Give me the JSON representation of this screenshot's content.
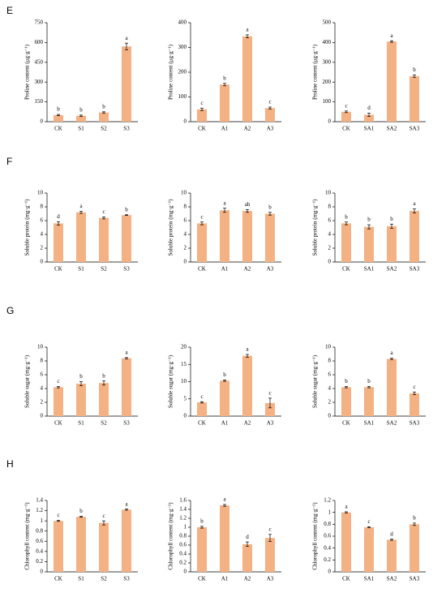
{
  "row_labels": [
    "E",
    "F",
    "G",
    "H"
  ],
  "chart_data": [
    {
      "type": "bar",
      "ylabel": "Proline content (μg·g⁻¹)",
      "categories": [
        "CK",
        "S1",
        "S2",
        "S3"
      ],
      "values": [
        50,
        45,
        70,
        570
      ],
      "errors": [
        5,
        5,
        5,
        25
      ],
      "significance": [
        "b",
        "b",
        "b",
        "a"
      ],
      "color": "#f4b183",
      "ylim": [
        0,
        750
      ],
      "yticks": [
        0,
        150,
        300,
        450,
        600,
        750
      ]
    },
    {
      "type": "bar",
      "ylabel": "Proline content (μg·g⁻¹)",
      "categories": [
        "CK",
        "A1",
        "A2",
        "A3"
      ],
      "values": [
        50,
        150,
        345,
        55
      ],
      "errors": [
        5,
        5,
        6,
        4
      ],
      "significance": [
        "c",
        "b",
        "a",
        "c"
      ],
      "color": "#f4b183",
      "ylim": [
        0,
        400
      ],
      "yticks": [
        0,
        100,
        200,
        300,
        400
      ]
    },
    {
      "type": "bar",
      "ylabel": "Proline content (μg·g⁻¹)",
      "categories": [
        "CK",
        "SA1",
        "SA2",
        "SA3"
      ],
      "values": [
        50,
        35,
        405,
        230
      ],
      "errors": [
        4,
        8,
        4,
        6
      ],
      "significance": [
        "c",
        "d",
        "a",
        "b"
      ],
      "color": "#f4b183",
      "ylim": [
        0,
        500
      ],
      "yticks": [
        0,
        100,
        200,
        300,
        400,
        500
      ]
    },
    {
      "type": "bar",
      "ylabel": "Soluble protein (mg·g⁻¹)",
      "categories": [
        "CK",
        "S1",
        "S2",
        "S3"
      ],
      "values": [
        5.6,
        7.2,
        6.4,
        6.8
      ],
      "errors": [
        0.25,
        0.15,
        0.15,
        0.05
      ],
      "significance": [
        "d",
        "a",
        "c",
        "b"
      ],
      "color": "#f4b183",
      "ylim": [
        0,
        10
      ],
      "yticks": [
        0,
        2,
        4,
        6,
        8,
        10
      ]
    },
    {
      "type": "bar",
      "ylabel": "Soluble protein (mg·g⁻¹)",
      "categories": [
        "CK",
        "A1",
        "A2",
        "A3"
      ],
      "values": [
        5.6,
        7.5,
        7.4,
        7.0
      ],
      "errors": [
        0.2,
        0.3,
        0.2,
        0.2
      ],
      "significance": [
        "c",
        "a",
        "ab",
        "b"
      ],
      "color": "#f4b183",
      "ylim": [
        0,
        10
      ],
      "yticks": [
        0,
        2,
        4,
        6,
        8,
        10
      ]
    },
    {
      "type": "bar",
      "ylabel": "Soluble protein (mg·g⁻¹)",
      "categories": [
        "CK",
        "SA1",
        "SA2",
        "SA3"
      ],
      "values": [
        5.6,
        5.1,
        5.2,
        7.4
      ],
      "errors": [
        0.2,
        0.3,
        0.3,
        0.3
      ],
      "significance": [
        "b",
        "b",
        "b",
        "a"
      ],
      "color": "#f4b183",
      "ylim": [
        0,
        10
      ],
      "yticks": [
        0,
        2,
        4,
        6,
        8,
        10
      ]
    },
    {
      "type": "bar",
      "ylabel": "Soluble sugar (mg·g⁻¹)",
      "categories": [
        "CK",
        "S1",
        "S2",
        "S3"
      ],
      "values": [
        4.2,
        4.7,
        4.8,
        8.4
      ],
      "errors": [
        0.1,
        0.3,
        0.3,
        0.1
      ],
      "significance": [
        "c",
        "b",
        "b",
        "a"
      ],
      "color": "#f4b183",
      "ylim": [
        0,
        10
      ],
      "yticks": [
        0,
        2,
        4,
        6,
        8,
        10
      ]
    },
    {
      "type": "bar",
      "ylabel": "Soluble sugar (mg·g⁻¹)",
      "categories": [
        "CK",
        "A1",
        "A2",
        "A3"
      ],
      "values": [
        4,
        10.3,
        17.5,
        3.8
      ],
      "errors": [
        0.2,
        0.2,
        0.4,
        1.4
      ],
      "significance": [
        "c",
        "b",
        "a",
        "c"
      ],
      "color": "#f4b183",
      "ylim": [
        0,
        20
      ],
      "yticks": [
        0,
        5,
        10,
        15,
        20
      ]
    },
    {
      "type": "bar",
      "ylabel": "Soluble sugar (mg·g⁻¹)",
      "categories": [
        "CK",
        "SA1",
        "SA2",
        "SA3"
      ],
      "values": [
        4.2,
        4.2,
        8.3,
        3.3
      ],
      "errors": [
        0.1,
        0.1,
        0.1,
        0.2
      ],
      "significance": [
        "b",
        "b",
        "a",
        "c"
      ],
      "color": "#f4b183",
      "ylim": [
        0,
        10
      ],
      "yticks": [
        0,
        2,
        4,
        6,
        8,
        10
      ]
    },
    {
      "type": "bar",
      "ylabel": "Chlorophyll content (mg·g⁻¹)",
      "categories": [
        "CK",
        "S1",
        "S2",
        "S3"
      ],
      "values": [
        1.0,
        1.08,
        0.96,
        1.22
      ],
      "errors": [
        0.01,
        0.01,
        0.04,
        0.01
      ],
      "significance": [
        "c",
        "b",
        "c",
        "a"
      ],
      "color": "#f4b183",
      "ylim": [
        0,
        1.4
      ],
      "yticks": [
        0,
        0.2,
        0.4,
        0.6,
        0.8,
        1,
        1.2,
        1.4
      ]
    },
    {
      "type": "bar",
      "ylabel": "Chlorophyll content (mg·g⁻¹)",
      "categories": [
        "CK",
        "A1",
        "A2",
        "A3"
      ],
      "values": [
        1.0,
        1.49,
        0.62,
        0.76
      ],
      "errors": [
        0.02,
        0.02,
        0.05,
        0.08
      ],
      "significance": [
        "b",
        "a",
        "d",
        "c"
      ],
      "color": "#f4b183",
      "ylim": [
        0,
        1.6
      ],
      "yticks": [
        0,
        0.2,
        0.4,
        0.6,
        0.8,
        1,
        1.2,
        1.4,
        1.6
      ]
    },
    {
      "type": "bar",
      "ylabel": "Chlorophyll content (mg·g⁻¹)",
      "categories": [
        "CK",
        "SA1",
        "SA2",
        "SA3"
      ],
      "values": [
        1.0,
        0.75,
        0.54,
        0.8
      ],
      "errors": [
        0.01,
        0.01,
        0.01,
        0.02
      ],
      "significance": [
        "a",
        "c",
        "d",
        "b"
      ],
      "color": "#f4b183",
      "ylim": [
        0,
        1.2
      ],
      "yticks": [
        0,
        0.2,
        0.4,
        0.6,
        0.8,
        1,
        1.2
      ]
    }
  ]
}
